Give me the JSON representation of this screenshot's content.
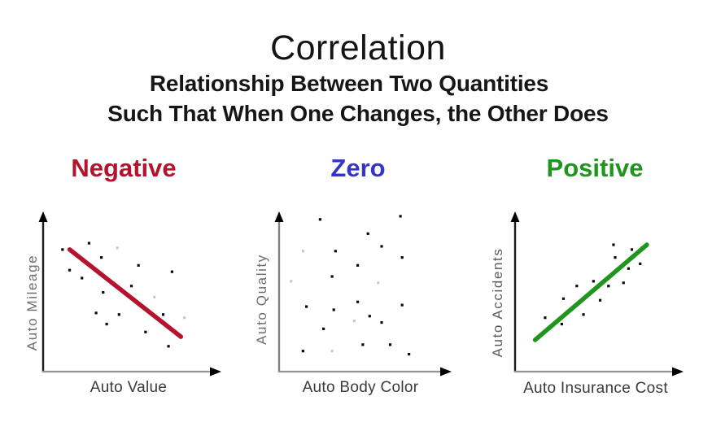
{
  "title": "Correlation",
  "subtitle_line1": "Relationship Between Two Quantities",
  "subtitle_line2": "Such That When One Changes, the Other Does",
  "colors": {
    "negative_accent": "#b5122d",
    "zero_accent": "#3535c8",
    "positive_accent": "#1e961e",
    "vertical_axis": "#1a1a1a",
    "zero_panel_axis": "#828282",
    "horizontal_axis": "#949494",
    "arrowhead": "#000000",
    "dot": "#0a0a0a",
    "faint_dot": "#c4c4c4",
    "y_label_text": "#6e6e6e",
    "x_label_text": "#3a3a3a",
    "title_text": "#141414"
  },
  "chart_data": [
    {
      "type": "scatter",
      "title": "Negative",
      "accent_color": "#b5122d",
      "xlabel": "Auto Value",
      "ylabel": "Auto Mileage",
      "grid": false,
      "ticks": false,
      "axis_style": "arrow axes, unlabeled",
      "coords_note": "normalized 0-1 within plot area, y measured downward from axis top",
      "points": [
        [
          0.11,
          0.23
        ],
        [
          0.26,
          0.19
        ],
        [
          0.33,
          0.28
        ],
        [
          0.15,
          0.36
        ],
        [
          0.22,
          0.41
        ],
        [
          0.54,
          0.33
        ],
        [
          0.73,
          0.37
        ],
        [
          0.34,
          0.5
        ],
        [
          0.5,
          0.46
        ],
        [
          0.3,
          0.63
        ],
        [
          0.43,
          0.64
        ],
        [
          0.36,
          0.7
        ],
        [
          0.58,
          0.75
        ],
        [
          0.71,
          0.84
        ],
        [
          0.68,
          0.64
        ]
      ],
      "faint_points": [
        [
          0.42,
          0.22
        ],
        [
          0.63,
          0.53
        ],
        [
          0.8,
          0.66
        ]
      ],
      "trendline": {
        "from": [
          0.15,
          0.23
        ],
        "to": [
          0.78,
          0.78
        ],
        "color": "#b5122d",
        "direction": "decreasing"
      }
    },
    {
      "type": "scatter",
      "title": "Zero",
      "accent_color": "#3535c8",
      "xlabel": "Auto Body Color",
      "ylabel": "Auto Quality",
      "grid": false,
      "ticks": false,
      "axis_style": "arrow axes, unlabeled",
      "coords_note": "normalized 0-1 within plot area, y measured downward from axis top",
      "points": [
        [
          0.71,
          0.02
        ],
        [
          0.24,
          0.04
        ],
        [
          0.52,
          0.13
        ],
        [
          0.6,
          0.21
        ],
        [
          0.33,
          0.24
        ],
        [
          0.72,
          0.28
        ],
        [
          0.46,
          0.33
        ],
        [
          0.31,
          0.4
        ],
        [
          0.46,
          0.56
        ],
        [
          0.72,
          0.58
        ],
        [
          0.32,
          0.61
        ],
        [
          0.16,
          0.59
        ],
        [
          0.53,
          0.65
        ],
        [
          0.6,
          0.69
        ],
        [
          0.26,
          0.73
        ],
        [
          0.49,
          0.83
        ],
        [
          0.65,
          0.83
        ],
        [
          0.14,
          0.87
        ],
        [
          0.76,
          0.89
        ]
      ],
      "faint_points": [
        [
          0.14,
          0.24
        ],
        [
          0.07,
          0.43
        ],
        [
          0.58,
          0.44
        ],
        [
          0.44,
          0.68
        ],
        [
          0.31,
          0.87
        ]
      ],
      "trendline": null
    },
    {
      "type": "scatter",
      "title": "Positive",
      "accent_color": "#1e961e",
      "xlabel": "Auto Insurance Cost",
      "ylabel": "Auto Accidents",
      "grid": false,
      "ticks": false,
      "axis_style": "arrow axes, unlabeled",
      "coords_note": "normalized 0-1 within plot area, y measured downward from axis top",
      "points": [
        [
          0.18,
          0.66
        ],
        [
          0.29,
          0.54
        ],
        [
          0.37,
          0.46
        ],
        [
          0.47,
          0.43
        ],
        [
          0.51,
          0.55
        ],
        [
          0.56,
          0.46
        ],
        [
          0.65,
          0.44
        ],
        [
          0.6,
          0.28
        ],
        [
          0.7,
          0.23
        ],
        [
          0.75,
          0.32
        ],
        [
          0.68,
          0.35
        ],
        [
          0.41,
          0.64
        ],
        [
          0.28,
          0.7
        ],
        [
          0.76,
          0.22
        ],
        [
          0.59,
          0.2
        ]
      ],
      "faint_points": [],
      "trendline": {
        "from": [
          0.12,
          0.8
        ],
        "to": [
          0.79,
          0.2
        ],
        "color": "#1e961e",
        "direction": "increasing"
      }
    }
  ]
}
